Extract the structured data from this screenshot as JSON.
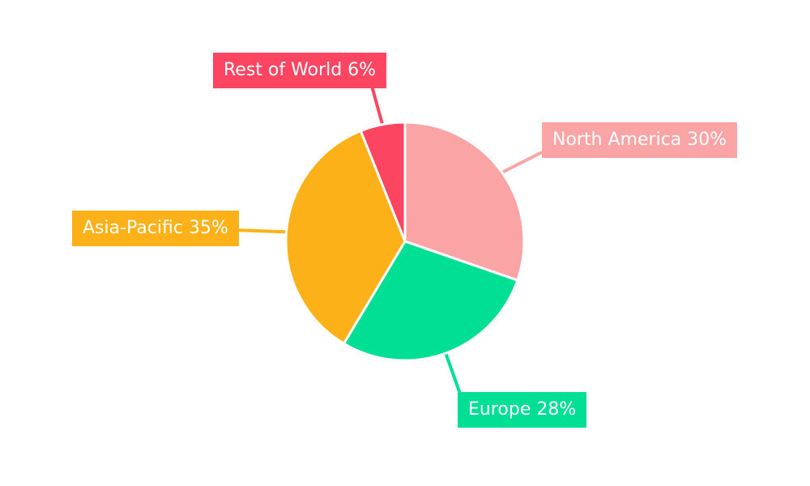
{
  "chart_data": {
    "type": "pie",
    "unit": "%",
    "direction": "clockwise",
    "start_angle_deg": 0,
    "background": "#FFFFFF",
    "label_text_color": "#FFFFFF",
    "separator_color": "#FFFFFF",
    "slices": [
      {
        "name": "North America",
        "value": 30,
        "label": "North America 30%",
        "color": "#FAA4A5"
      },
      {
        "name": "Europe",
        "value": 28,
        "label": "Europe 28%",
        "color": "#00DF94"
      },
      {
        "name": "Asia-Pacific",
        "value": 35,
        "label": "Asia-Pacific 35%",
        "color": "#FCB118"
      },
      {
        "name": "Rest of World",
        "value": 6,
        "label": "Rest of World 6%",
        "color": "#FC4561"
      }
    ]
  }
}
